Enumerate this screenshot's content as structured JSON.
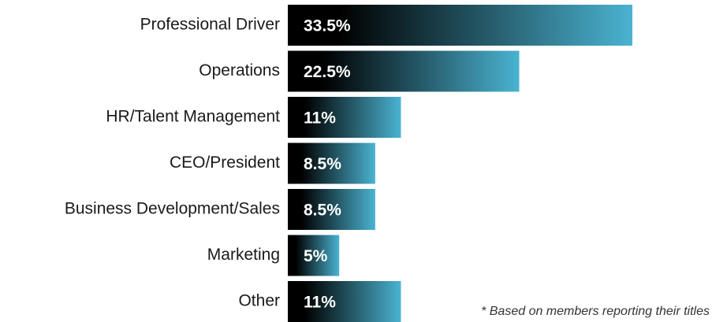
{
  "chart_data": {
    "type": "bar",
    "orientation": "horizontal",
    "categories": [
      "Professional Driver",
      "Operations",
      "HR/Talent Management",
      "CEO/President",
      "Business Development/Sales",
      "Marketing",
      "Other"
    ],
    "values": [
      33.5,
      22.5,
      11,
      8.5,
      8.5,
      5,
      11
    ],
    "value_labels": [
      "33.5%",
      "22.5%",
      "11%",
      "8.5%",
      "8.5%",
      "5%",
      "11%"
    ],
    "colors": [
      "#000000",
      "#4ab3d1"
    ],
    "annotation": "*  Based on members reporting their titles"
  }
}
